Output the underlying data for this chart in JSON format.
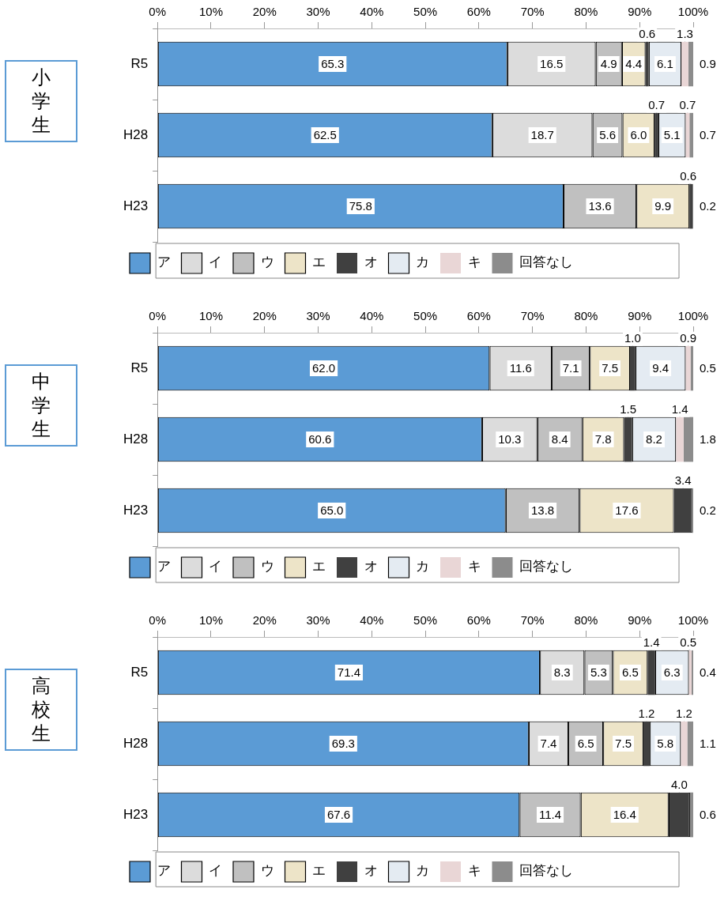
{
  "chart_data": [
    {
      "type": "bar",
      "orientation": "horizontal",
      "stacked": true,
      "title": "小学生",
      "categories": [
        "R5",
        "H28",
        "H23"
      ],
      "xlim": [
        0,
        100
      ],
      "xticks": [
        {
          "value": 0,
          "label": "0%"
        },
        {
          "value": 10,
          "label": "10%"
        },
        {
          "value": 20,
          "label": "20%"
        },
        {
          "value": 30,
          "label": "30%"
        },
        {
          "value": 40,
          "label": "40%"
        },
        {
          "value": 50,
          "label": "50%"
        },
        {
          "value": 60,
          "label": "60%"
        },
        {
          "value": 70,
          "label": "70%"
        },
        {
          "value": 80,
          "label": "80%"
        },
        {
          "value": 90,
          "label": "90%"
        },
        {
          "value": 100,
          "label": "100%"
        }
      ],
      "grid": false,
      "legend": "bottom",
      "series": [
        {
          "name": "ア",
          "color": "#5b9bd5",
          "values": [
            65.3,
            62.5,
            75.8
          ],
          "value_labels": [
            "65.3",
            "62.5",
            "75.8"
          ]
        },
        {
          "name": "イ",
          "color": "#dcdcdc",
          "values": [
            16.5,
            18.7,
            null
          ],
          "value_labels": [
            "16.5",
            "18.7",
            null
          ]
        },
        {
          "name": "ウ",
          "color": "#c0c0c0",
          "values": [
            4.9,
            5.6,
            13.6
          ],
          "value_labels": [
            "4.9",
            "5.6",
            "13.6"
          ]
        },
        {
          "name": "エ",
          "color": "#ede4c8",
          "values": [
            4.4,
            6.0,
            9.9
          ],
          "value_labels": [
            "4.4",
            "6.0",
            "9.9"
          ]
        },
        {
          "name": "オ",
          "color": "#404040",
          "values": [
            0.6,
            0.7,
            0.6
          ],
          "value_labels": [
            "0.6",
            "0.7",
            "0.6"
          ]
        },
        {
          "name": "カ",
          "color": "#e4ebf2",
          "values": [
            6.1,
            5.1,
            null
          ],
          "value_labels": [
            "6.1",
            "5.1",
            null
          ]
        },
        {
          "name": "キ",
          "color": "#e9d6d6",
          "values": [
            1.3,
            0.7,
            null
          ],
          "value_labels": [
            "1.3",
            "0.7",
            null
          ]
        },
        {
          "name": "回答なし",
          "color": "#8c8c8c",
          "values": [
            0.9,
            0.7,
            0.2
          ],
          "value_labels": [
            "0.9",
            "0.7",
            "0.2"
          ]
        }
      ]
    },
    {
      "type": "bar",
      "orientation": "horizontal",
      "stacked": true,
      "title": "中学生",
      "categories": [
        "R5",
        "H28",
        "H23"
      ],
      "xlim": [
        0,
        100
      ],
      "xticks": [
        {
          "value": 0,
          "label": "0%"
        },
        {
          "value": 10,
          "label": "10%"
        },
        {
          "value": 20,
          "label": "20%"
        },
        {
          "value": 30,
          "label": "30%"
        },
        {
          "value": 40,
          "label": "40%"
        },
        {
          "value": 50,
          "label": "50%"
        },
        {
          "value": 60,
          "label": "60%"
        },
        {
          "value": 70,
          "label": "70%"
        },
        {
          "value": 80,
          "label": "80%"
        },
        {
          "value": 90,
          "label": "90%"
        },
        {
          "value": 100,
          "label": "100%"
        }
      ],
      "grid": false,
      "legend": "bottom",
      "series": [
        {
          "name": "ア",
          "color": "#5b9bd5",
          "values": [
            62.0,
            60.6,
            65.0
          ],
          "value_labels": [
            "62.0",
            "60.6",
            "65.0"
          ]
        },
        {
          "name": "イ",
          "color": "#dcdcdc",
          "values": [
            11.6,
            10.3,
            null
          ],
          "value_labels": [
            "11.6",
            "10.3",
            null
          ]
        },
        {
          "name": "ウ",
          "color": "#c0c0c0",
          "values": [
            7.1,
            8.4,
            13.8
          ],
          "value_labels": [
            "7.1",
            "8.4",
            "13.8"
          ]
        },
        {
          "name": "エ",
          "color": "#ede4c8",
          "values": [
            7.5,
            7.8,
            17.6
          ],
          "value_labels": [
            "7.5",
            "7.8",
            "17.6"
          ]
        },
        {
          "name": "オ",
          "color": "#404040",
          "values": [
            1.0,
            1.5,
            3.4
          ],
          "value_labels": [
            "1.0",
            "1.5",
            "3.4"
          ]
        },
        {
          "name": "カ",
          "color": "#e4ebf2",
          "values": [
            9.4,
            8.2,
            null
          ],
          "value_labels": [
            "9.4",
            "8.2",
            null
          ]
        },
        {
          "name": "キ",
          "color": "#e9d6d6",
          "values": [
            0.9,
            1.4,
            null
          ],
          "value_labels": [
            "0.9",
            "1.4",
            null
          ]
        },
        {
          "name": "回答なし",
          "color": "#8c8c8c",
          "values": [
            0.5,
            1.8,
            0.2
          ],
          "value_labels": [
            "0.5",
            "1.8",
            "0.2"
          ]
        }
      ]
    },
    {
      "type": "bar",
      "orientation": "horizontal",
      "stacked": true,
      "title": "高校生",
      "categories": [
        "R5",
        "H28",
        "H23"
      ],
      "xlim": [
        0,
        100
      ],
      "xticks": [
        {
          "value": 0,
          "label": "0%"
        },
        {
          "value": 10,
          "label": "10%"
        },
        {
          "value": 20,
          "label": "20%"
        },
        {
          "value": 30,
          "label": "30%"
        },
        {
          "value": 40,
          "label": "40%"
        },
        {
          "value": 50,
          "label": "50%"
        },
        {
          "value": 60,
          "label": "60%"
        },
        {
          "value": 70,
          "label": "70%"
        },
        {
          "value": 80,
          "label": "80%"
        },
        {
          "value": 90,
          "label": "90%"
        },
        {
          "value": 100,
          "label": "100%"
        }
      ],
      "grid": false,
      "legend": "bottom",
      "series": [
        {
          "name": "ア",
          "color": "#5b9bd5",
          "values": [
            71.4,
            69.3,
            67.6
          ],
          "value_labels": [
            "71.4",
            "69.3",
            "67.6"
          ]
        },
        {
          "name": "イ",
          "color": "#dcdcdc",
          "values": [
            8.3,
            7.4,
            null
          ],
          "value_labels": [
            "8.3",
            "7.4",
            null
          ]
        },
        {
          "name": "ウ",
          "color": "#c0c0c0",
          "values": [
            5.3,
            6.5,
            11.4
          ],
          "value_labels": [
            "5.3",
            "6.5",
            "11.4"
          ]
        },
        {
          "name": "エ",
          "color": "#ede4c8",
          "values": [
            6.5,
            7.5,
            16.4
          ],
          "value_labels": [
            "6.5",
            "7.5",
            "16.4"
          ]
        },
        {
          "name": "オ",
          "color": "#404040",
          "values": [
            1.4,
            1.2,
            4.0
          ],
          "value_labels": [
            "1.4",
            "1.2",
            "4.0"
          ]
        },
        {
          "name": "カ",
          "color": "#e4ebf2",
          "values": [
            6.3,
            5.8,
            null
          ],
          "value_labels": [
            "6.3",
            "5.8",
            null
          ]
        },
        {
          "name": "キ",
          "color": "#e9d6d6",
          "values": [
            0.5,
            1.2,
            null
          ],
          "value_labels": [
            "0.5",
            "1.2",
            null
          ]
        },
        {
          "name": "回答なし",
          "color": "#8c8c8c",
          "values": [
            0.4,
            1.1,
            0.6
          ],
          "value_labels": [
            "0.4",
            "1.1",
            "0.6"
          ]
        }
      ]
    }
  ]
}
